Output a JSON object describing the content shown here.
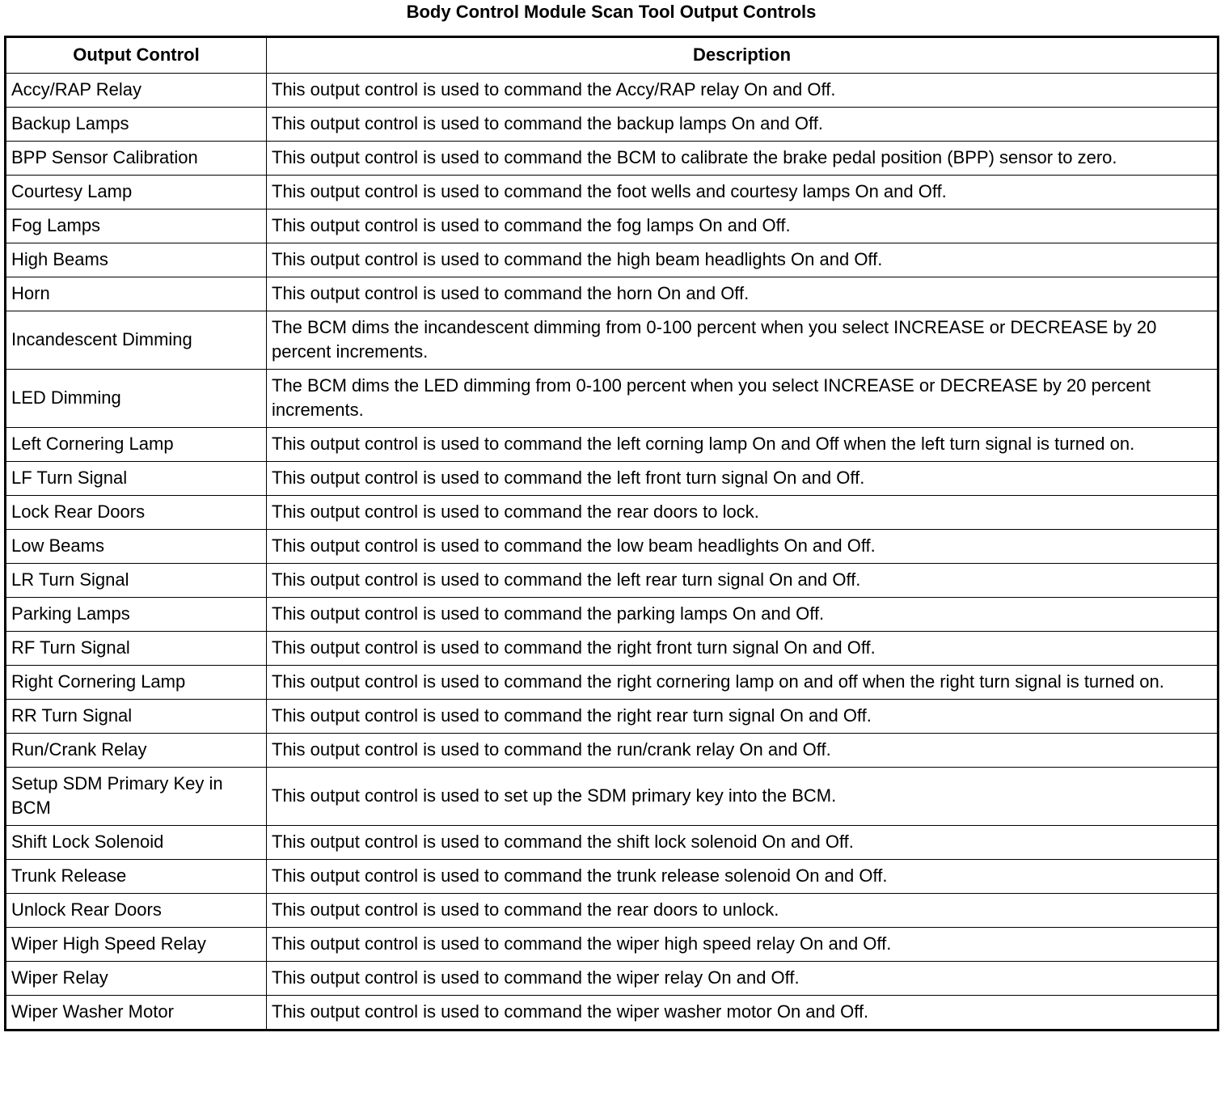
{
  "title": "Body Control Module Scan Tool Output Controls",
  "headers": [
    "Output Control",
    "Description"
  ],
  "rows": [
    [
      "Accy/RAP Relay",
      "This output control is used to command the Accy/RAP relay On and Off."
    ],
    [
      "Backup Lamps",
      "This output control is used to command the backup lamps On and Off."
    ],
    [
      "BPP Sensor Calibration",
      "This output control is used to command the BCM to calibrate the brake pedal position (BPP) sensor to zero."
    ],
    [
      "Courtesy Lamp",
      "This output control is used to command the foot wells and courtesy lamps On and Off."
    ],
    [
      "Fog Lamps",
      "This output control is used to command the fog lamps On and Off."
    ],
    [
      "High Beams",
      "This output control is used to command the high beam headlights On and Off."
    ],
    [
      "Horn",
      "This output control is used to command the horn On and Off."
    ],
    [
      "Incandescent Dimming",
      "The BCM dims the incandescent dimming from 0-100 percent when you select INCREASE or DECREASE by 20 percent increments."
    ],
    [
      "LED Dimming",
      "The BCM dims the LED dimming from 0-100 percent when you select INCREASE or DECREASE by 20 percent increments."
    ],
    [
      "Left Cornering Lamp",
      "This output control is used to command the left corning lamp On and Off when the left turn signal is turned on."
    ],
    [
      "LF Turn Signal",
      "This output control is used to command the left front turn signal On and Off."
    ],
    [
      "Lock Rear Doors",
      "This output control is used to command the rear doors to lock."
    ],
    [
      "Low Beams",
      "This output control is used to command the low beam headlights On and Off."
    ],
    [
      "LR Turn Signal",
      "This output control is used to command the left rear turn signal On and Off."
    ],
    [
      "Parking Lamps",
      "This output control is used to command the parking lamps On and Off."
    ],
    [
      "RF Turn Signal",
      "This output control is used to command the right front turn signal On and Off."
    ],
    [
      "Right Cornering Lamp",
      "This output control is used to command the right cornering lamp on and off when the right turn signal is turned on."
    ],
    [
      "RR Turn Signal",
      "This output control is used to command the right rear turn signal On and Off."
    ],
    [
      "Run/Crank Relay",
      "This output control is used to command the run/crank relay On and Off."
    ],
    [
      "Setup SDM Primary Key in BCM",
      "This output control is used to set up the SDM primary key into the BCM."
    ],
    [
      "Shift Lock Solenoid",
      "This output control is used to command the shift lock solenoid On and Off."
    ],
    [
      "Trunk Release",
      "This output control is used to command the trunk release solenoid On and Off."
    ],
    [
      "Unlock Rear Doors",
      "This output control is used to command the rear doors to unlock."
    ],
    [
      "Wiper High Speed Relay",
      "This output control is used to command the wiper high speed relay On and Off."
    ],
    [
      "Wiper Relay",
      "This output control is used to command the wiper relay On and Off."
    ],
    [
      "Wiper Washer Motor",
      "This output control is used to command the wiper washer motor On and Off."
    ]
  ]
}
